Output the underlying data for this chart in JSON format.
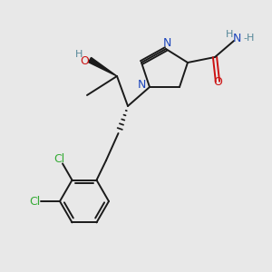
{
  "bg_color": "#e8e8e8",
  "bond_color": "#1a1a1a",
  "n_color": "#1a44bb",
  "o_color": "#cc1111",
  "cl_color": "#33aa33",
  "h_color": "#558899",
  "figsize": [
    3.0,
    3.0
  ],
  "dpi": 100,
  "xlim": [
    0,
    10
  ],
  "ylim": [
    0,
    10
  ],
  "lw": 1.4
}
